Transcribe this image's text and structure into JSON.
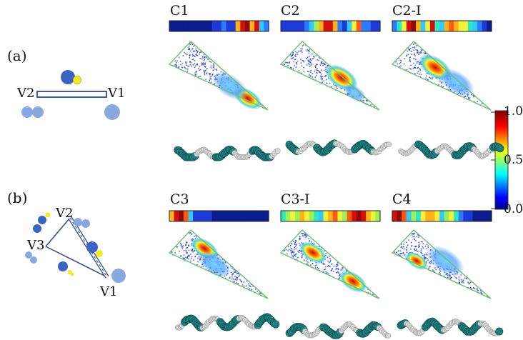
{
  "part_labels": {
    "a": "(a)",
    "b": "(b)"
  },
  "schematic_a": {
    "left_label": "V2",
    "right_label": "V1"
  },
  "schematic_b": {
    "top_label": "V2",
    "left_label": "V3",
    "bottom_label": "V1"
  },
  "panels": [
    {
      "title": "C1"
    },
    {
      "title": "C2"
    },
    {
      "title": "C2-I"
    },
    {
      "title": "C3"
    },
    {
      "title": "C3-I"
    },
    {
      "title": "C4"
    }
  ],
  "colorbar": {
    "max_label": "1.0",
    "mid_label": "0.5",
    "min_label": "0.0",
    "range": [
      0.0,
      1.0
    ]
  },
  "colors": {
    "bead_teal": "#1f7e7e",
    "bead_grey": "#d8d8d8",
    "triangle_edge": "#6cc06c",
    "disk_blue": "#8aa8e0",
    "disk_dark": "#3a65c4",
    "disk_yellow": "#f5ea22"
  }
}
